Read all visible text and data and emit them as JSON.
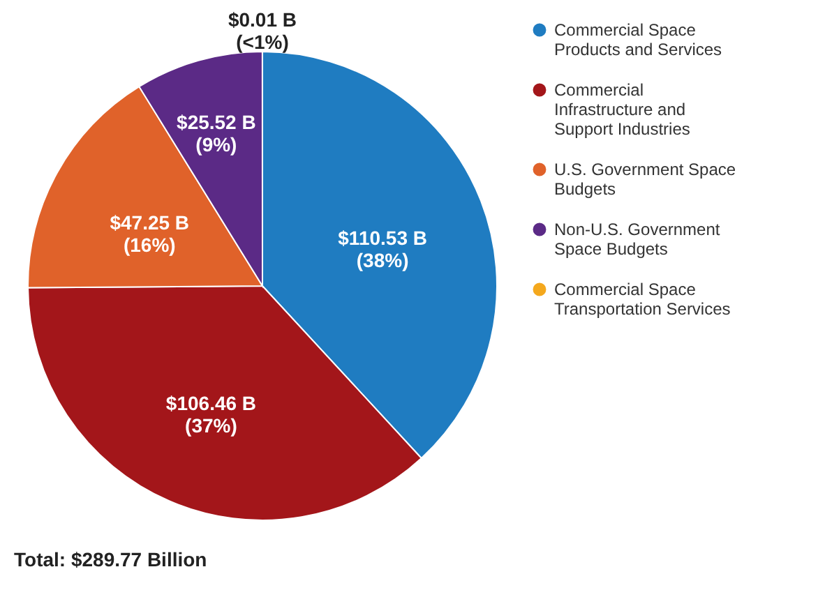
{
  "chart_data": {
    "type": "pie",
    "categories": [
      "Commercial Space Products and Services",
      "Commercial Infrastructure and Support Industries",
      "U.S. Government Space Budgets",
      "Non-U.S. Government Space Budgets",
      "Commercial Space Transportation Services"
    ],
    "values": [
      110.53,
      106.46,
      47.25,
      25.52,
      0.01
    ],
    "colors": [
      "#1f7cc1",
      "#a3161a",
      "#e0622a",
      "#5b2a86",
      "#f4a81d"
    ],
    "value_labels": [
      "$110.53 B (38%)",
      "$106.46 B (37%)",
      "$47.25 B (16%)",
      "$25.52 B (9%)",
      "$0.01 B (<1%)"
    ],
    "legend": "right",
    "annotations": [
      "Total: $289.77 Billion"
    ]
  }
}
